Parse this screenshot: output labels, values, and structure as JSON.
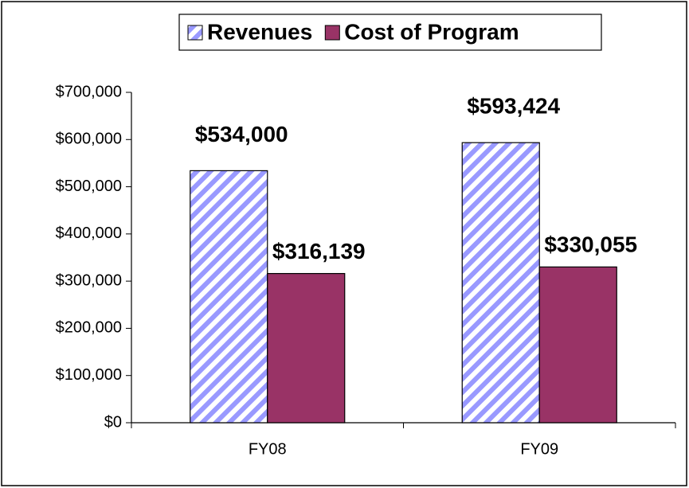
{
  "chart_data": {
    "type": "bar",
    "categories": [
      "FY08",
      "FY09"
    ],
    "series": [
      {
        "name": "Revenues",
        "color": "#9999ff",
        "pattern": "hatch",
        "values": [
          534000,
          593424
        ],
        "value_labels": [
          "$534,000",
          "$593,424"
        ]
      },
      {
        "name": "Cost of Program",
        "color": "#993366",
        "values": [
          316139,
          330055
        ],
        "value_labels": [
          "$316,139",
          "$330,055"
        ]
      }
    ],
    "ylim": [
      0,
      700000
    ],
    "yticks": [
      {
        "value": 0,
        "label": "$0"
      },
      {
        "value": 100000,
        "label": "$100,000"
      },
      {
        "value": 200000,
        "label": "$200,000"
      },
      {
        "value": 300000,
        "label": "$300,000"
      },
      {
        "value": 400000,
        "label": "$400,000"
      },
      {
        "value": 500000,
        "label": "$500,000"
      },
      {
        "value": 600000,
        "label": "$600,000"
      },
      {
        "value": 700000,
        "label": "$700,000"
      }
    ],
    "grid": false,
    "legend": "top"
  }
}
